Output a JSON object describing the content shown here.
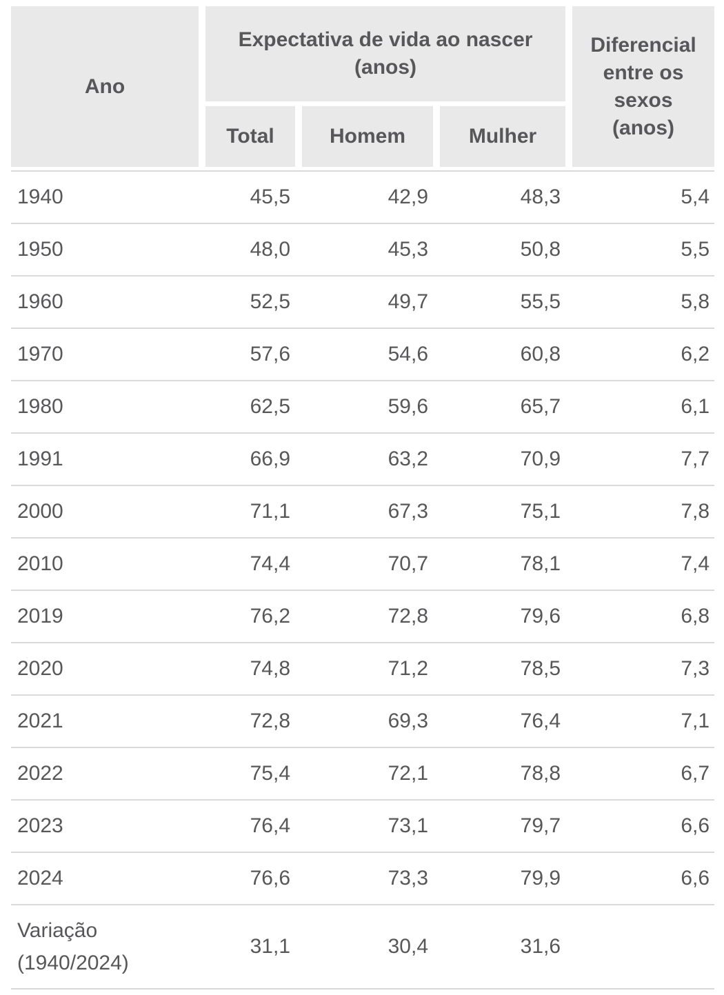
{
  "colors": {
    "header_bg": "#e9e9e9",
    "divider": "#d9d9d9",
    "text": "#57575a",
    "background": "#ffffff"
  },
  "table": {
    "header": {
      "year_label": "Ano",
      "group_label": "Expectativa de vida ao nascer (anos)",
      "subcolumns": [
        "Total",
        "Homem",
        "Mulher"
      ],
      "differential_label": "Diferencial entre os sexos (anos)"
    },
    "rows": [
      {
        "year": "1940",
        "total": "45,5",
        "homem": "42,9",
        "mulher": "48,3",
        "diferencial": "5,4"
      },
      {
        "year": "1950",
        "total": "48,0",
        "homem": "45,3",
        "mulher": "50,8",
        "diferencial": "5,5"
      },
      {
        "year": "1960",
        "total": "52,5",
        "homem": "49,7",
        "mulher": "55,5",
        "diferencial": "5,8"
      },
      {
        "year": "1970",
        "total": "57,6",
        "homem": "54,6",
        "mulher": "60,8",
        "diferencial": "6,2"
      },
      {
        "year": "1980",
        "total": "62,5",
        "homem": "59,6",
        "mulher": "65,7",
        "diferencial": "6,1"
      },
      {
        "year": "1991",
        "total": "66,9",
        "homem": "63,2",
        "mulher": "70,9",
        "diferencial": "7,7"
      },
      {
        "year": "2000",
        "total": "71,1",
        "homem": "67,3",
        "mulher": "75,1",
        "diferencial": "7,8"
      },
      {
        "year": "2010",
        "total": "74,4",
        "homem": "70,7",
        "mulher": "78,1",
        "diferencial": "7,4"
      },
      {
        "year": "2019",
        "total": "76,2",
        "homem": "72,8",
        "mulher": "79,6",
        "diferencial": "6,8"
      },
      {
        "year": "2020",
        "total": "74,8",
        "homem": "71,2",
        "mulher": "78,5",
        "diferencial": "7,3"
      },
      {
        "year": "2021",
        "total": "72,8",
        "homem": "69,3",
        "mulher": "76,4",
        "diferencial": "7,1"
      },
      {
        "year": "2022",
        "total": "75,4",
        "homem": "72,1",
        "mulher": "78,8",
        "diferencial": "6,7"
      },
      {
        "year": "2023",
        "total": "76,4",
        "homem": "73,1",
        "mulher": "79,7",
        "diferencial": "6,6"
      },
      {
        "year": "2024",
        "total": "76,6",
        "homem": "73,3",
        "mulher": "79,9",
        "diferencial": "6,6"
      }
    ],
    "summary_row": {
      "label": "Variação (1940/2024)",
      "total": "31,1",
      "homem": "30,4",
      "mulher": "31,6",
      "diferencial": ""
    }
  },
  "chart_data": {
    "type": "table",
    "title": "Expectativa de vida ao nascer (anos)",
    "columns": [
      "Ano",
      "Total",
      "Homem",
      "Mulher",
      "Diferencial entre os sexos (anos)"
    ],
    "rows": [
      [
        "1940",
        45.5,
        42.9,
        48.3,
        5.4
      ],
      [
        "1950",
        48.0,
        45.3,
        50.8,
        5.5
      ],
      [
        "1960",
        52.5,
        49.7,
        55.5,
        5.8
      ],
      [
        "1970",
        57.6,
        54.6,
        60.8,
        6.2
      ],
      [
        "1980",
        62.5,
        59.6,
        65.7,
        6.1
      ],
      [
        "1991",
        66.9,
        63.2,
        70.9,
        7.7
      ],
      [
        "2000",
        71.1,
        67.3,
        75.1,
        7.8
      ],
      [
        "2010",
        74.4,
        70.7,
        78.1,
        7.4
      ],
      [
        "2019",
        76.2,
        72.8,
        79.6,
        6.8
      ],
      [
        "2020",
        74.8,
        71.2,
        78.5,
        7.3
      ],
      [
        "2021",
        72.8,
        69.3,
        76.4,
        7.1
      ],
      [
        "2022",
        75.4,
        72.1,
        78.8,
        6.7
      ],
      [
        "2023",
        76.4,
        73.1,
        79.7,
        6.6
      ],
      [
        "2024",
        76.6,
        73.3,
        79.9,
        6.6
      ],
      [
        "Variação (1940/2024)",
        31.1,
        30.4,
        31.6,
        null
      ]
    ],
    "decimal_separator": ","
  }
}
